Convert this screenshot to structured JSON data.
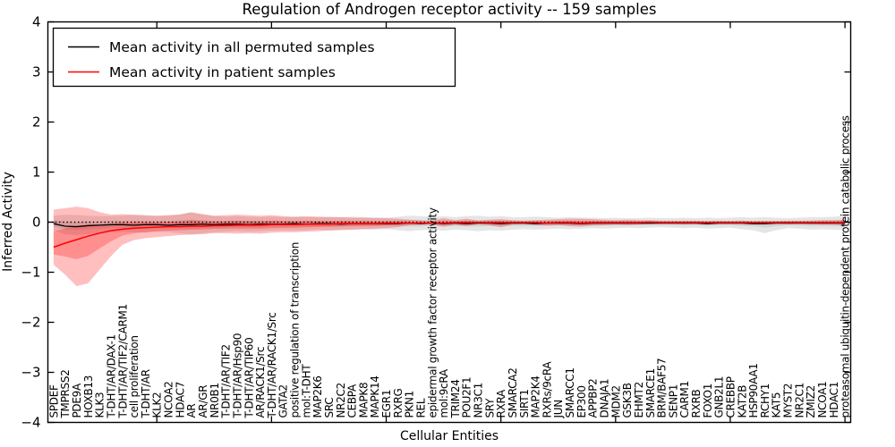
{
  "title": "Regulation of Androgen receptor activity -- 159 samples",
  "chart_data": {
    "type": "line",
    "title": "Regulation of Androgen receptor activity -- 159 samples",
    "xlabel": "Cellular Entities",
    "ylabel": "Inferred Activity",
    "ylim": [
      -4,
      4
    ],
    "yticks": [
      4,
      3,
      2,
      1,
      0,
      -1,
      -2,
      -3,
      -4
    ],
    "ytick_labels": [
      "4",
      "3",
      "2",
      "1",
      "0",
      "−1",
      "−2",
      "−3",
      "−4"
    ],
    "xtick_indices": [
      9,
      19,
      29,
      39,
      49,
      59,
      69
    ],
    "grid": false,
    "zero_line_style": "dotted",
    "legend_position": "upper left",
    "band_opacity": 0.25,
    "inner_band_factor": 0.42,
    "categories": [
      "SPDEF",
      "TMPRSS2",
      "PDE9A",
      "HOXB13",
      "KLK3",
      "T-DHT/AR/DAX-1",
      "T-DHT/AR/TIF2/CARM1",
      "cell proliferation",
      "T-DHT/AR",
      "KLK2",
      "NCOA2",
      "HDAC7",
      "AR",
      "AR/GR",
      "NR0B1",
      "T-DHT/AR/TIF2",
      "T-DHT/AR/Hsp90",
      "T-DHT/AR/TIP60",
      "AR/RACK1/Src",
      "T-DHT/AR/RACK1/Src",
      "GATA2",
      "positive regulation of transcription",
      "mol:T-DHT",
      "MAP2K6",
      "SRC",
      "NR2C2",
      "CEBPA",
      "MAPK8",
      "MAPK14",
      "EGR1",
      "RXRG",
      "PKN1",
      "REL",
      "epidermal growth factor receptor activity",
      "mol:9cRA",
      "TRIM24",
      "POU2F1",
      "NR3C1",
      "SRY",
      "RXRA",
      "SMARCA2",
      "SIRT1",
      "MAP2K4",
      "RXRs/9cRA",
      "JUN",
      "SMARCC1",
      "EP300",
      "APPBP2",
      "DNAJA1",
      "MDM2",
      "GSK3B",
      "EHMT2",
      "SMARCE1",
      "BRM/BAF57",
      "SENP1",
      "CARM1",
      "RXRB",
      "FOXO1",
      "GNB2L1",
      "CREBBP",
      "KAT2B",
      "HSP90AA1",
      "RCHY1",
      "KAT5",
      "MYST2",
      "NR2C1",
      "ZMIZ2",
      "NCOA1",
      "HDAC1",
      "proteasomal ubiquitin-dependent protein catabolic process"
    ],
    "series": [
      {
        "name": "Mean activity in all permuted samples",
        "color": "#000000",
        "band_color": "#999999",
        "values": [
          -0.03,
          -0.08,
          -0.09,
          -0.07,
          -0.06,
          -0.05,
          -0.05,
          -0.06,
          -0.05,
          -0.05,
          -0.06,
          -0.05,
          -0.05,
          -0.04,
          -0.05,
          -0.04,
          -0.04,
          -0.05,
          -0.04,
          -0.04,
          -0.04,
          -0.03,
          -0.04,
          -0.03,
          -0.03,
          -0.04,
          -0.03,
          -0.03,
          -0.03,
          -0.03,
          -0.03,
          -0.02,
          -0.03,
          -0.02,
          -0.03,
          -0.02,
          -0.03,
          -0.02,
          -0.02,
          -0.03,
          -0.02,
          -0.02,
          -0.03,
          -0.02,
          -0.02,
          -0.02,
          -0.03,
          -0.02,
          -0.02,
          -0.02,
          -0.02,
          -0.02,
          -0.02,
          -0.02,
          -0.02,
          -0.02,
          -0.02,
          -0.03,
          -0.02,
          -0.02,
          -0.02,
          -0.03,
          -0.03,
          -0.02,
          -0.02,
          -0.02,
          -0.02,
          -0.02,
          -0.02,
          -0.02
        ],
        "band_lo": [
          -0.17,
          -0.24,
          -0.26,
          -0.24,
          -0.22,
          -0.2,
          -0.19,
          -0.2,
          -0.21,
          -0.19,
          -0.2,
          -0.22,
          -0.24,
          -0.22,
          -0.2,
          -0.19,
          -0.18,
          -0.19,
          -0.18,
          -0.17,
          -0.16,
          -0.17,
          -0.16,
          -0.15,
          -0.16,
          -0.15,
          -0.15,
          -0.14,
          -0.15,
          -0.14,
          -0.16,
          -0.18,
          -0.16,
          -0.15,
          -0.17,
          -0.15,
          -0.16,
          -0.18,
          -0.16,
          -0.17,
          -0.15,
          -0.14,
          -0.15,
          -0.14,
          -0.13,
          -0.14,
          -0.13,
          -0.12,
          -0.13,
          -0.12,
          -0.11,
          -0.12,
          -0.11,
          -0.1,
          -0.11,
          -0.12,
          -0.11,
          -0.13,
          -0.12,
          -0.11,
          -0.14,
          -0.16,
          -0.22,
          -0.16,
          -0.12,
          -0.13,
          -0.15,
          -0.14,
          -0.15,
          -0.16
        ],
        "band_hi": [
          0.13,
          0.15,
          0.14,
          0.13,
          0.12,
          0.12,
          0.13,
          0.14,
          0.13,
          0.12,
          0.13,
          0.16,
          0.19,
          0.15,
          0.12,
          0.11,
          0.12,
          0.11,
          0.1,
          0.11,
          0.1,
          0.1,
          0.1,
          0.1,
          0.11,
          0.1,
          0.11,
          0.1,
          0.1,
          0.09,
          0.11,
          0.13,
          0.12,
          0.11,
          0.12,
          0.1,
          0.12,
          0.13,
          0.11,
          0.12,
          0.1,
          0.1,
          0.11,
          0.1,
          0.09,
          0.1,
          0.09,
          0.09,
          0.08,
          0.09,
          0.08,
          0.08,
          0.09,
          0.08,
          0.08,
          0.09,
          0.08,
          0.09,
          0.08,
          0.09,
          0.1,
          0.09,
          0.1,
          0.09,
          0.08,
          0.09,
          0.1,
          0.1,
          0.11,
          0.12
        ]
      },
      {
        "name": "Mean activity in patient samples",
        "color": "#ff0000",
        "band_color": "#ff0000",
        "values": [
          -0.5,
          -0.42,
          -0.35,
          -0.28,
          -0.22,
          -0.17,
          -0.14,
          -0.12,
          -0.11,
          -0.1,
          -0.09,
          -0.09,
          -0.08,
          -0.08,
          -0.07,
          -0.07,
          -0.06,
          -0.06,
          -0.06,
          -0.05,
          -0.05,
          -0.05,
          -0.04,
          -0.04,
          -0.04,
          -0.03,
          -0.03,
          -0.03,
          -0.03,
          -0.02,
          -0.02,
          -0.02,
          -0.02,
          -0.02,
          -0.02,
          -0.01,
          -0.01,
          -0.01,
          -0.01,
          -0.01,
          -0.01,
          -0.01,
          -0.01,
          -0.02,
          -0.01,
          -0.01,
          -0.02,
          -0.01,
          -0.01,
          -0.01,
          -0.01,
          -0.01,
          0.0,
          -0.01,
          -0.01,
          -0.01,
          -0.01,
          -0.01,
          -0.01,
          -0.01,
          -0.01,
          -0.01,
          -0.01,
          -0.01,
          -0.01,
          -0.01,
          -0.01,
          -0.01,
          -0.01,
          -0.01
        ],
        "band_lo": [
          -0.85,
          -1.05,
          -1.28,
          -1.22,
          -0.95,
          -0.68,
          -0.45,
          -0.36,
          -0.32,
          -0.3,
          -0.28,
          -0.26,
          -0.25,
          -0.24,
          -0.22,
          -0.22,
          -0.23,
          -0.22,
          -0.23,
          -0.21,
          -0.2,
          -0.2,
          -0.19,
          -0.18,
          -0.17,
          -0.16,
          -0.15,
          -0.14,
          -0.13,
          -0.12,
          -0.1,
          -0.06,
          -0.05,
          -0.04,
          -0.09,
          -0.05,
          -0.08,
          -0.04,
          -0.06,
          -0.1,
          -0.05,
          -0.04,
          -0.05,
          -0.07,
          -0.06,
          -0.08,
          -0.09,
          -0.07,
          -0.06,
          -0.05,
          -0.06,
          -0.05,
          -0.04,
          -0.03,
          -0.03,
          -0.04,
          -0.03,
          -0.03,
          -0.03,
          -0.03,
          -0.03,
          -0.03,
          -0.02,
          -0.03,
          -0.04,
          -0.03,
          -0.04,
          -0.05,
          -0.05,
          -0.06
        ],
        "band_hi": [
          0.25,
          0.28,
          0.31,
          0.28,
          0.2,
          0.15,
          0.16,
          0.15,
          0.14,
          0.13,
          0.14,
          0.15,
          0.2,
          0.16,
          0.13,
          0.14,
          0.15,
          0.14,
          0.13,
          0.14,
          0.12,
          0.11,
          0.12,
          0.11,
          0.1,
          0.1,
          0.09,
          0.09,
          0.08,
          0.08,
          0.07,
          0.05,
          0.04,
          0.03,
          0.08,
          0.04,
          0.07,
          0.03,
          0.05,
          0.06,
          0.04,
          0.03,
          0.04,
          0.05,
          0.06,
          0.07,
          0.07,
          0.06,
          0.05,
          0.04,
          0.05,
          0.04,
          0.04,
          0.03,
          0.03,
          0.03,
          0.03,
          0.02,
          0.03,
          0.02,
          0.03,
          0.02,
          0.02,
          0.02,
          0.03,
          0.03,
          0.03,
          0.04,
          0.04,
          0.05
        ]
      }
    ]
  }
}
